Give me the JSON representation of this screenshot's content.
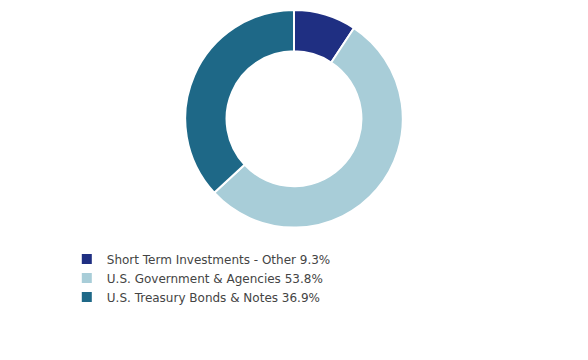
{
  "chart_data": {
    "type": "pie",
    "categories": [
      "Short Term Investments - Other 9.3%",
      "U.S. Government & Agencies 53.8%",
      "U.S. Treasury Bonds & Notes 36.9%"
    ],
    "values": [
      9.3,
      53.8,
      36.9
    ],
    "colors": [
      "#1f2f82",
      "#a8cdd8",
      "#1e6887"
    ],
    "legend": "bottom",
    "data_labels": false
  }
}
